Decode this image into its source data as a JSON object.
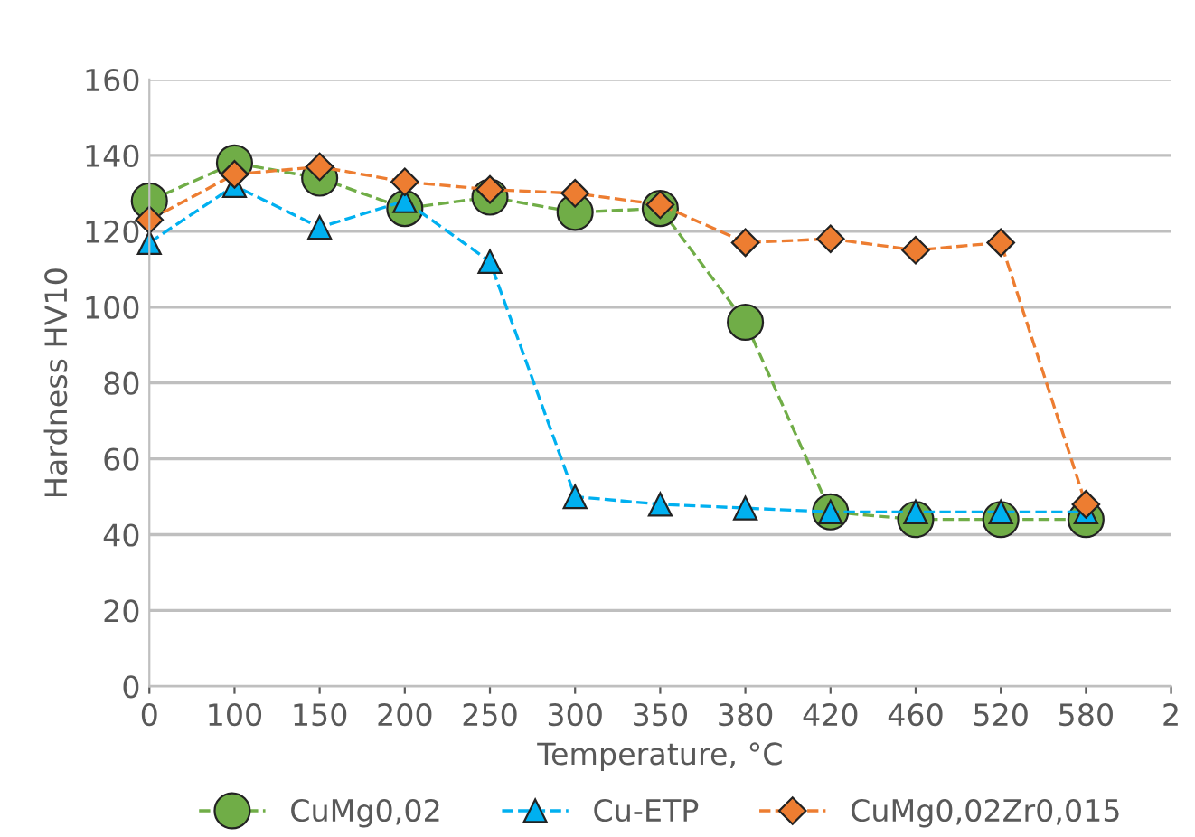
{
  "chart_data": {
    "type": "line",
    "xlabel": "Temperature, °C",
    "ylabel": "Hardness HV10",
    "categories": [
      "0",
      "100",
      "150",
      "200",
      "250",
      "300",
      "350",
      "380",
      "420",
      "460",
      "520",
      "580",
      "2"
    ],
    "ylim": [
      0,
      160
    ],
    "yticks": [
      0,
      20,
      40,
      60,
      80,
      100,
      120,
      140,
      160
    ],
    "grid": "y",
    "legend": "bottom",
    "line_style": "dashed",
    "series": [
      {
        "name": "CuMg0,02",
        "color": "#70ad47",
        "marker": "circle",
        "values": [
          128,
          138,
          134,
          126,
          129,
          125,
          126,
          96,
          46,
          44,
          44,
          44,
          null
        ]
      },
      {
        "name": "Cu-ETP",
        "color": "#00b0f0",
        "marker": "triangle",
        "values": [
          117,
          132,
          121,
          128,
          112,
          50,
          48,
          47,
          46,
          46,
          46,
          46,
          null
        ]
      },
      {
        "name": "CuMg0,02Zr0,015",
        "color": "#ed7d31",
        "marker": "diamond",
        "values": [
          123,
          135,
          137,
          133,
          131,
          130,
          127,
          117,
          118,
          115,
          117,
          48,
          null
        ]
      }
    ]
  }
}
